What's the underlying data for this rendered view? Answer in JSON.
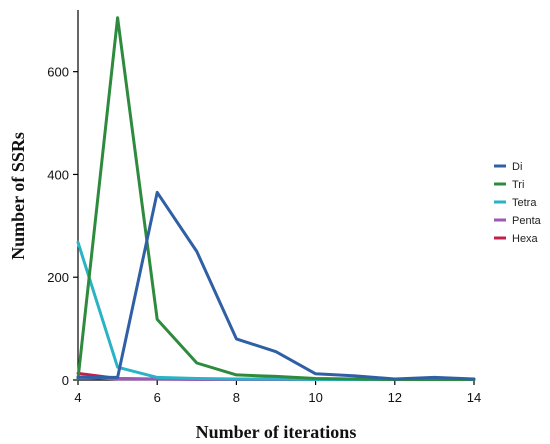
{
  "chart_data": {
    "type": "line",
    "title": "",
    "xlabel": "Number of iterations",
    "ylabel": "Number of SSRs",
    "x": [
      4,
      5,
      6,
      7,
      8,
      9,
      10,
      11,
      12,
      13,
      14
    ],
    "xlim": [
      4,
      14
    ],
    "ylim": [
      0,
      720
    ],
    "xticks": [
      4,
      6,
      8,
      10,
      12,
      14
    ],
    "yticks": [
      0,
      200,
      400,
      600
    ],
    "grid": false,
    "legend_position": "right",
    "series": [
      {
        "name": "Di",
        "color": "#2f5fa5",
        "values": [
          5,
          5,
          365,
          250,
          80,
          55,
          12,
          8,
          2,
          5,
          2
        ]
      },
      {
        "name": "Tri",
        "color": "#2e8b3e",
        "values": [
          2,
          705,
          118,
          33,
          10,
          7,
          3,
          2,
          1,
          1,
          1
        ]
      },
      {
        "name": "Tetra",
        "color": "#29b3c4",
        "values": [
          268,
          25,
          5,
          3,
          2,
          2,
          1,
          1,
          1,
          1,
          1
        ]
      },
      {
        "name": "Penta",
        "color": "#9b59b6",
        "values": [
          6,
          2,
          2,
          1,
          1,
          1,
          1,
          1,
          1,
          1,
          1
        ]
      },
      {
        "name": "Hexa",
        "color": "#c0204a",
        "values": [
          13,
          3,
          2,
          2,
          2,
          2,
          2,
          2,
          2,
          2,
          2
        ]
      }
    ]
  }
}
